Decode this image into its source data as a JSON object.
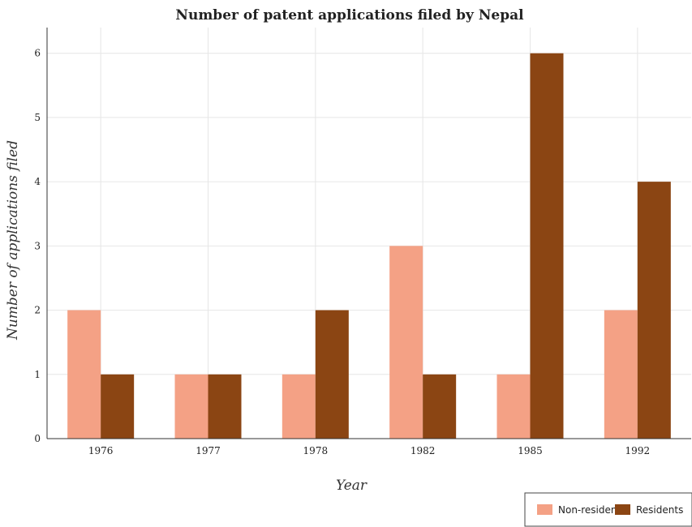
{
  "chart_data": {
    "type": "bar",
    "title": "Number of patent applications filed by Nepal",
    "xlabel": "Year",
    "ylabel": "Number of applications filed",
    "categories": [
      "1976",
      "1977",
      "1978",
      "1982",
      "1985",
      "1992"
    ],
    "series": [
      {
        "name": "Non-residents",
        "values": [
          2,
          1,
          1,
          3,
          1,
          2
        ],
        "color": "#f4a185"
      },
      {
        "name": "Residents",
        "values": [
          1,
          1,
          2,
          1,
          6,
          4
        ],
        "color": "#8b4513"
      }
    ],
    "ylim": [
      0,
      6.4
    ],
    "yticks": [
      0,
      1,
      2,
      3,
      4,
      5,
      6
    ],
    "grid": true,
    "legend_position": "bottom-right"
  }
}
